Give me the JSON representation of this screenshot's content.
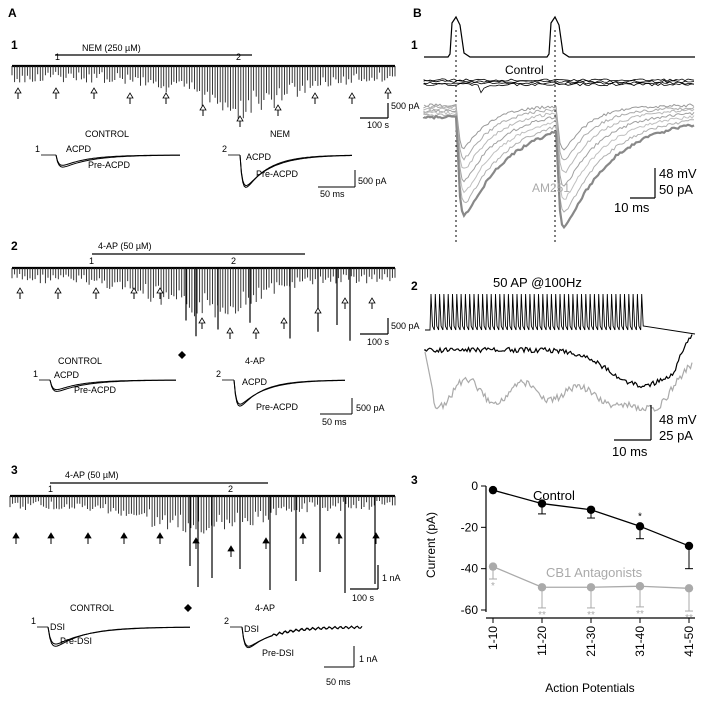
{
  "panelA": {
    "label": "A",
    "sub1": {
      "num": "1",
      "drug": "NEM (250 µM)",
      "mark1": "1",
      "mark2": "2",
      "scaleY": "500 pA",
      "scaleX": "100 s",
      "ctrlTitle": "CONTROL",
      "drugTitle": "NEM",
      "tA": "ACPD",
      "tB": "Pre-ACPD",
      "i1": "1",
      "i2": "2",
      "insetScaleY": "500 pA",
      "insetScaleX": "50 ms"
    },
    "sub2": {
      "num": "2",
      "drug": "4-AP (50 µM)",
      "mark1": "1",
      "mark2": "2",
      "scaleY": "500 pA",
      "scaleX": "100 s",
      "ctrlTitle": "CONTROL",
      "drugTitle": "4-AP",
      "tA": "ACPD",
      "tB": "Pre-ACPD",
      "i1": "1",
      "i2": "2",
      "insetScaleY": "500 pA",
      "insetScaleX": "50 ms"
    },
    "sub3": {
      "num": "3",
      "drug": "4-AP (50 µM)",
      "mark1": "1",
      "mark2": "2",
      "scaleY": "1 nA",
      "scaleX": "100 s",
      "ctrlTitle": "CONTROL",
      "drugTitle": "4-AP",
      "tA": "DSI",
      "tB": "Pre-DSI",
      "i1": "1",
      "i2": "2",
      "insetScaleY": "1 nA",
      "insetScaleX": "50 ms"
    }
  },
  "panelB": {
    "label": "B",
    "sub1": {
      "num": "1",
      "control": "Control",
      "am": "AM251",
      "s1": "48 mV",
      "s2": "50 pA",
      "sx": "10 ms"
    },
    "sub2": {
      "num": "2",
      "title": "50 AP @100Hz",
      "s1": "48 mV",
      "s2": "25 pA",
      "sx": "10 ms"
    },
    "sub3": {
      "num": "3"
    }
  },
  "colors": {
    "control": "#000000",
    "antagonist": "#aaaaaa"
  },
  "chart_data": {
    "type": "line",
    "categories": [
      "1-10",
      "11-20",
      "21-30",
      "31-40",
      "41-50"
    ],
    "xlabel": "Action Potentials",
    "ylabel": "Current (pA)",
    "ylim": [
      -60,
      0
    ],
    "yticks": [
      "0",
      "-20",
      "-40",
      "-60"
    ],
    "series": [
      {
        "name": "Control",
        "values": [
          -2,
          -8.5,
          -11.5,
          -19.5,
          -29
        ],
        "errors": [
          0,
          5,
          4,
          6,
          11
        ],
        "marks": [
          "",
          "",
          "",
          "*",
          ""
        ]
      },
      {
        "name": "CB1 Antagonists",
        "values": [
          -39,
          -49,
          -49,
          -48.5,
          -49.5
        ],
        "errors": [
          6,
          10,
          10,
          10,
          11
        ],
        "marks": [
          "*",
          "**",
          "**",
          "**",
          "**"
        ]
      }
    ]
  }
}
